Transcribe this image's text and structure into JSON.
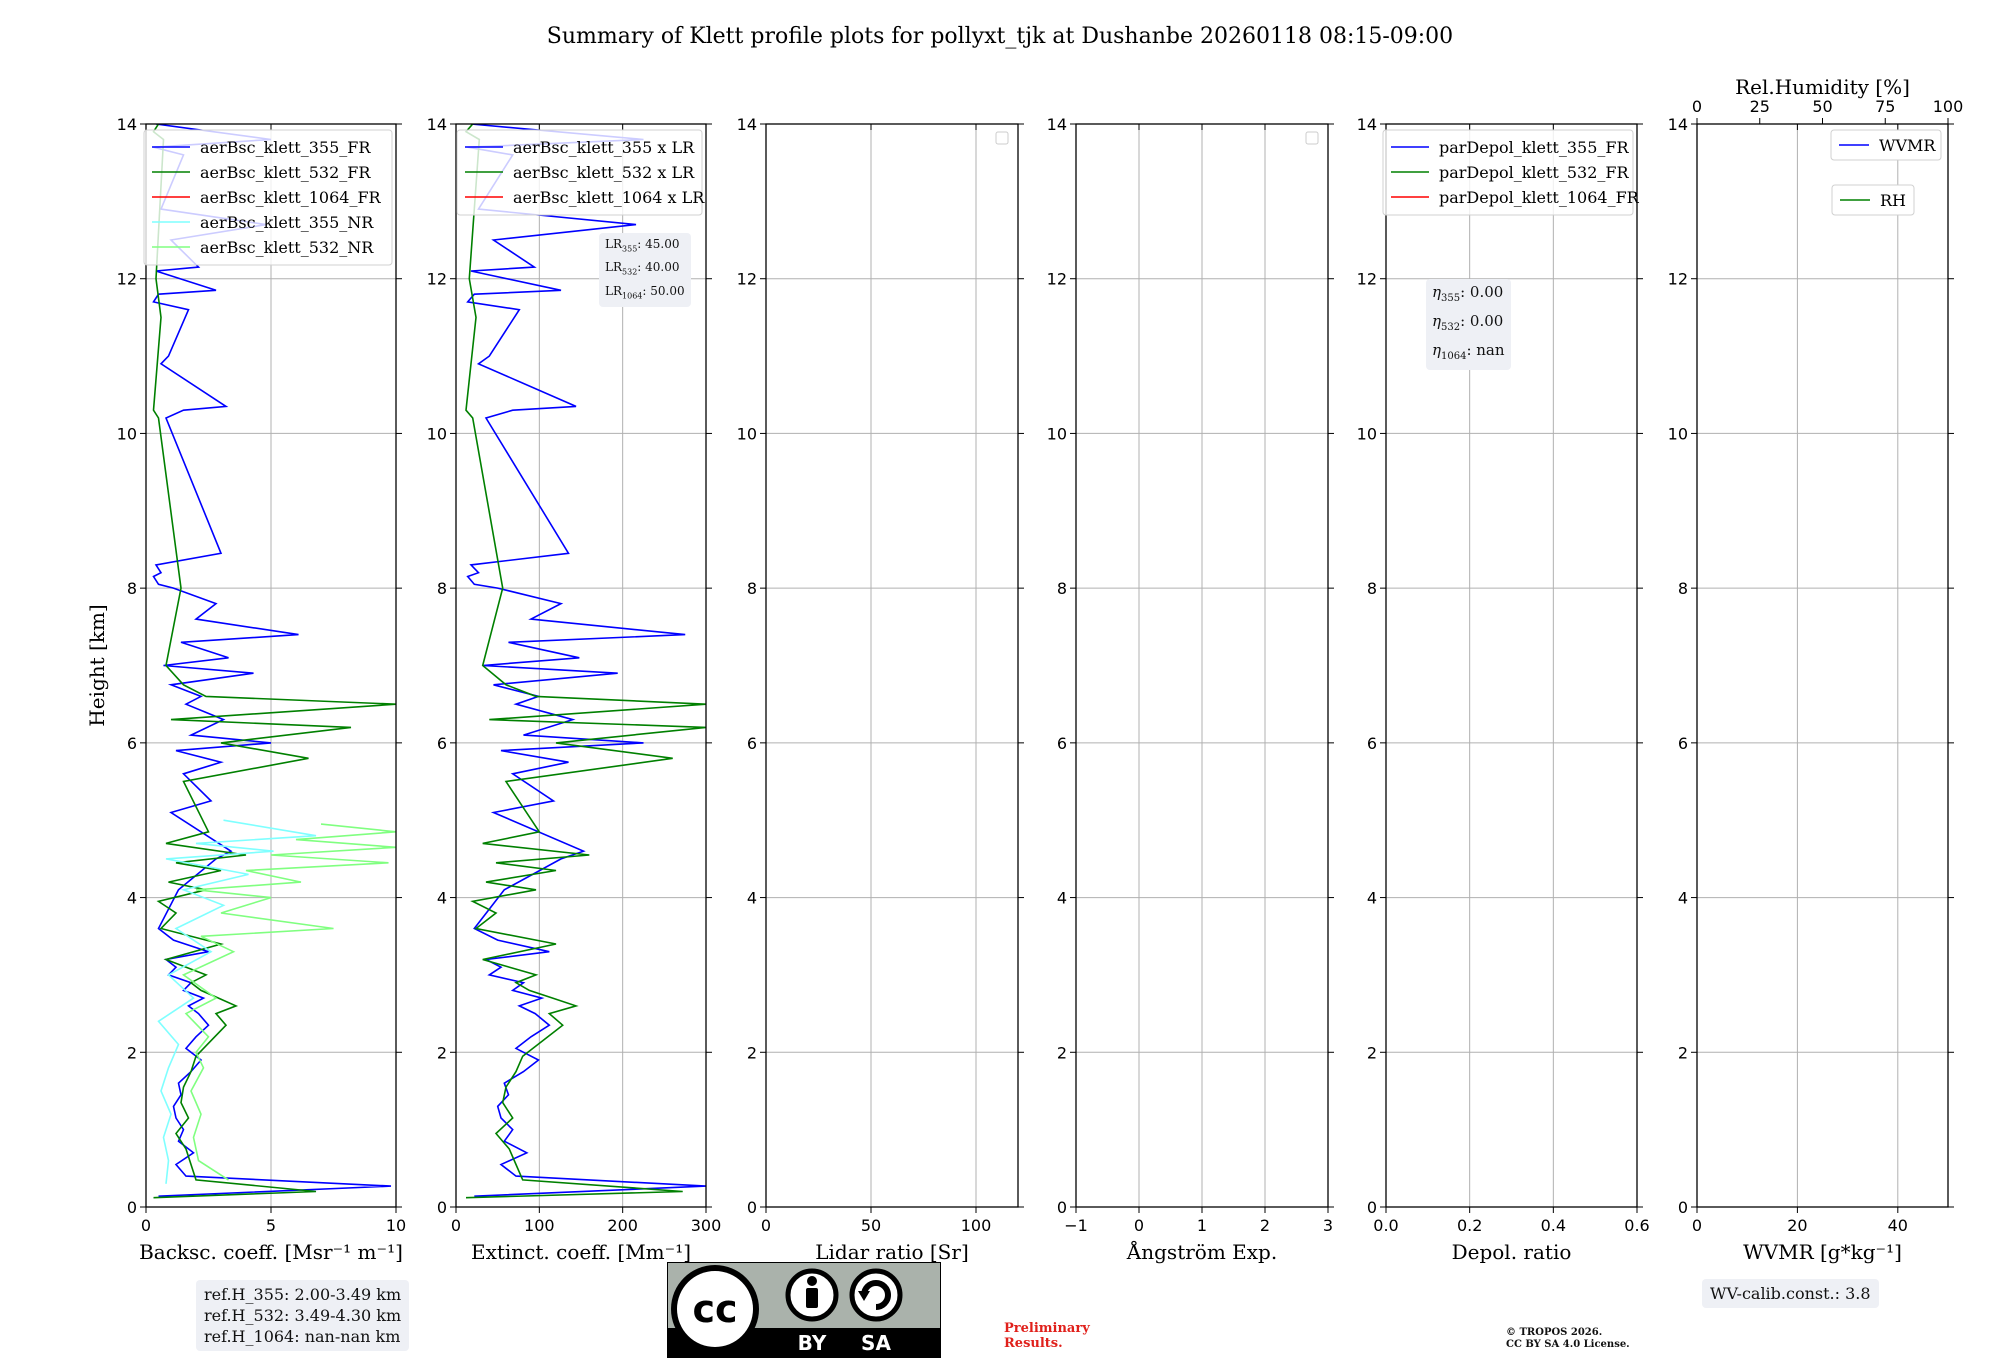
{
  "title": "Summary of Klett profile plots for pollyxt_tjk at Dushanbe 20260118 08:15-09:00",
  "colors": {
    "blue": "#0000ff",
    "green": "#008000",
    "red": "#ff0000",
    "cyan": "#7fffff",
    "lightgreen": "#80ff80",
    "grid": "#b0b0b0"
  },
  "chart_data": [
    {
      "type": "line",
      "xlabel": "Backsc. coeff. [Msr⁻¹ m⁻¹]",
      "ylabel": "Height [km]",
      "xlim": [
        0,
        10
      ],
      "ylim": [
        0,
        14
      ],
      "xticks": [
        0,
        5,
        10
      ],
      "yticks": [
        0,
        2,
        4,
        6,
        8,
        10,
        12,
        14
      ],
      "legend": [
        "aerBsc_klett_355_FR",
        "aerBsc_klett_532_FR",
        "aerBsc_klett_1064_FR",
        "aerBsc_klett_355_NR",
        "aerBsc_klett_532_NR"
      ],
      "legend_position": "top-right",
      "series": [
        {
          "name": "aerBsc_klett_355_FR",
          "color": "#0000ff",
          "x": [
            0.5,
            9.8,
            1.6,
            1.2,
            1.9,
            1.3,
            1.5,
            1.2,
            1.1,
            1.4,
            1.3,
            1.8,
            2.2,
            1.6,
            2.0,
            2.5,
            2.1,
            1.7,
            2.3,
            1.5,
            1.8,
            0.9,
            1.2,
            0.8,
            2.5,
            1.1,
            0.5,
            1.3,
            2.8,
            3.4,
            1.0,
            2.6,
            1.5,
            3.0,
            1.2,
            5.0,
            1.8,
            3.1,
            1.6,
            2.2,
            1.0,
            4.3,
            0.7,
            3.3,
            1.4,
            6.1,
            2.0,
            2.8,
            1.1,
            0.5,
            0.3,
            0.6,
            0.4,
            3.0,
            0.8,
            1.5,
            3.2,
            0.6,
            0.9,
            1.7,
            0.3,
            0.5,
            2.8,
            0.4,
            2.1,
            1.0,
            4.8,
            0.6,
            1.5,
            0.3,
            5.0,
            0.4
          ],
          "y": [
            0.14,
            0.27,
            0.4,
            0.55,
            0.7,
            0.85,
            1.0,
            1.15,
            1.3,
            1.45,
            1.6,
            1.75,
            1.9,
            2.05,
            2.2,
            2.35,
            2.5,
            2.6,
            2.7,
            2.8,
            2.9,
            3.0,
            3.1,
            3.2,
            3.3,
            3.45,
            3.6,
            4.1,
            4.5,
            4.6,
            5.1,
            5.25,
            5.6,
            5.75,
            5.9,
            6.0,
            6.1,
            6.3,
            6.5,
            6.6,
            6.75,
            6.9,
            7.0,
            7.1,
            7.3,
            7.4,
            7.6,
            7.8,
            8.0,
            8.05,
            8.15,
            8.2,
            8.3,
            8.45,
            10.2,
            10.3,
            10.35,
            10.9,
            11.0,
            11.6,
            11.7,
            11.8,
            11.85,
            12.1,
            12.15,
            12.5,
            12.7,
            12.9,
            13.6,
            13.7,
            13.8,
            14.0
          ]
        },
        {
          "name": "aerBsc_klett_532_FR",
          "color": "#008000",
          "x": [
            0.3,
            6.8,
            2.0,
            1.8,
            1.6,
            1.2,
            1.7,
            1.4,
            1.5,
            1.8,
            2.0,
            2.6,
            3.2,
            2.8,
            3.6,
            2.9,
            2.2,
            1.8,
            2.4,
            0.8,
            3.0,
            0.6,
            1.2,
            0.5,
            2.4,
            0.9,
            3.0,
            1.2,
            4.0,
            0.8,
            2.5,
            1.5,
            6.5,
            3.0,
            8.2,
            1.0,
            10.0,
            2.4,
            1.5,
            0.8,
            1.4,
            0.5,
            0.3,
            0.6,
            0.4,
            0.7,
            0.3,
            0.5
          ],
          "y": [
            0.12,
            0.2,
            0.35,
            0.55,
            0.75,
            0.95,
            1.15,
            1.35,
            1.55,
            1.75,
            1.95,
            2.15,
            2.35,
            2.5,
            2.6,
            2.7,
            2.8,
            2.9,
            3.0,
            3.2,
            3.4,
            3.6,
            3.8,
            3.95,
            4.1,
            4.2,
            4.35,
            4.45,
            4.55,
            4.7,
            4.85,
            5.5,
            5.8,
            6.0,
            6.2,
            6.3,
            6.5,
            6.6,
            6.75,
            7.0,
            8.0,
            10.2,
            10.3,
            11.5,
            12.0,
            13.8,
            13.9,
            14.0
          ]
        },
        {
          "name": "aerBsc_klett_1064_FR",
          "color": "#ff0000",
          "x": [],
          "y": []
        },
        {
          "name": "aerBsc_klett_355_NR",
          "color": "#7fffff",
          "x": [
            0.8,
            0.9,
            0.7,
            1.0,
            0.6,
            0.9,
            1.3,
            0.5,
            1.9,
            0.9,
            2.6,
            1.2,
            3.1,
            1.5,
            4.1,
            0.8,
            5.1,
            2.0,
            6.8,
            3.1
          ],
          "y": [
            0.3,
            0.6,
            0.9,
            1.2,
            1.5,
            1.8,
            2.1,
            2.4,
            2.7,
            3.0,
            3.3,
            3.6,
            3.9,
            4.1,
            4.3,
            4.5,
            4.6,
            4.7,
            4.8,
            5.0
          ]
        },
        {
          "name": "aerBsc_klett_532_NR",
          "color": "#80ff80",
          "x": [
            3.3,
            2.1,
            1.9,
            2.2,
            1.8,
            2.3,
            2.0,
            2.5,
            1.6,
            2.8,
            1.5,
            3.5,
            2.2,
            7.5,
            3.0,
            5.0,
            2.0,
            6.2,
            4.0,
            9.7,
            5.0,
            10.0,
            6.0,
            10.0,
            7.0
          ],
          "y": [
            0.35,
            0.6,
            0.9,
            1.2,
            1.5,
            1.8,
            2.0,
            2.2,
            2.5,
            2.7,
            3.0,
            3.3,
            3.5,
            3.6,
            3.8,
            4.0,
            4.1,
            4.2,
            4.35,
            4.45,
            4.55,
            4.65,
            4.75,
            4.85,
            4.95
          ]
        }
      ]
    },
    {
      "type": "line",
      "xlabel": "Extinct. coeff. [Mm⁻¹]",
      "xlim": [
        0,
        300
      ],
      "ylim": [
        0,
        14
      ],
      "xticks": [
        0,
        100,
        200,
        300
      ],
      "yticks": [
        0,
        2,
        4,
        6,
        8,
        10,
        12,
        14
      ],
      "legend": [
        "aerBsc_klett_355 x LR",
        "aerBsc_klett_532 x LR",
        "aerBsc_klett_1064 x LR"
      ],
      "legend_position": "top-right",
      "series": [
        {
          "name": "aerBsc_klett_355 x LR",
          "color": "#0000ff",
          "x": [
            22,
            300,
            72,
            54,
            85,
            58,
            68,
            54,
            50,
            63,
            58,
            81,
            99,
            72,
            90,
            112,
            95,
            76,
            103,
            68,
            81,
            40,
            54,
            36,
            112,
            50,
            22,
            58,
            126,
            153,
            45,
            117,
            68,
            135,
            54,
            225,
            81,
            140,
            72,
            99,
            45,
            194,
            32,
            148,
            63,
            275,
            90,
            126,
            50,
            22,
            14,
            27,
            18,
            135,
            36,
            68,
            144,
            27,
            40,
            76,
            14,
            22,
            126,
            18,
            94,
            45,
            216,
            27,
            68,
            14,
            225,
            18
          ],
          "y": [
            0.14,
            0.27,
            0.4,
            0.55,
            0.7,
            0.85,
            1.0,
            1.15,
            1.3,
            1.45,
            1.6,
            1.75,
            1.9,
            2.05,
            2.2,
            2.35,
            2.5,
            2.6,
            2.7,
            2.8,
            2.9,
            3.0,
            3.1,
            3.2,
            3.3,
            3.45,
            3.6,
            4.1,
            4.5,
            4.6,
            5.1,
            5.25,
            5.6,
            5.75,
            5.9,
            6.0,
            6.1,
            6.3,
            6.5,
            6.6,
            6.75,
            6.9,
            7.0,
            7.1,
            7.3,
            7.4,
            7.6,
            7.8,
            8.0,
            8.05,
            8.15,
            8.2,
            8.3,
            8.45,
            10.2,
            10.3,
            10.35,
            10.9,
            11.0,
            11.6,
            11.7,
            11.8,
            11.85,
            12.1,
            12.15,
            12.5,
            12.7,
            12.9,
            13.6,
            13.7,
            13.8,
            14.0
          ]
        },
        {
          "name": "aerBsc_klett_532 x LR",
          "color": "#008000",
          "x": [
            12,
            272,
            80,
            72,
            64,
            48,
            68,
            56,
            60,
            72,
            80,
            104,
            128,
            112,
            144,
            116,
            88,
            72,
            96,
            32,
            120,
            24,
            48,
            20,
            96,
            36,
            120,
            48,
            160,
            32,
            100,
            60,
            260,
            120,
            300,
            40,
            300,
            96,
            60,
            32,
            56,
            20,
            12,
            24,
            16,
            28,
            12,
            20
          ],
          "y": [
            0.12,
            0.2,
            0.35,
            0.55,
            0.75,
            0.95,
            1.15,
            1.35,
            1.55,
            1.75,
            1.95,
            2.15,
            2.35,
            2.5,
            2.6,
            2.7,
            2.8,
            2.9,
            3.0,
            3.2,
            3.4,
            3.6,
            3.8,
            3.95,
            4.1,
            4.2,
            4.35,
            4.45,
            4.55,
            4.7,
            4.85,
            5.5,
            5.8,
            6.0,
            6.2,
            6.3,
            6.5,
            6.6,
            6.75,
            7.0,
            8.0,
            10.2,
            10.3,
            11.5,
            12.0,
            13.8,
            13.9,
            14.0
          ]
        },
        {
          "name": "aerBsc_klett_1064 x LR",
          "color": "#ff0000",
          "x": [],
          "y": []
        }
      ]
    },
    {
      "type": "line",
      "xlabel": "Lidar ratio [Sr]",
      "xlim": [
        0,
        120
      ],
      "ylim": [
        0,
        14
      ],
      "xticks": [
        0,
        50,
        100
      ],
      "yticks": [
        0,
        2,
        4,
        6,
        8,
        10,
        12,
        14
      ],
      "legend": [],
      "series": []
    },
    {
      "type": "line",
      "xlabel": "Ångström Exp.",
      "xlim": [
        -1,
        3
      ],
      "ylim": [
        0,
        14
      ],
      "xticks": [
        -1,
        0,
        1,
        2,
        3
      ],
      "yticks": [
        0,
        2,
        4,
        6,
        8,
        10,
        12,
        14
      ],
      "legend": [],
      "series": []
    },
    {
      "type": "line",
      "xlabel": "Depol. ratio",
      "xlim": [
        0,
        0.6
      ],
      "ylim": [
        0,
        14
      ],
      "xticks": [
        0.0,
        0.2,
        0.4,
        0.6
      ],
      "yticks": [
        0,
        2,
        4,
        6,
        8,
        10,
        12,
        14
      ],
      "legend": [
        "parDepol_klett_355_FR",
        "parDepol_klett_532_FR",
        "parDepol_klett_1064_FR"
      ],
      "legend_position": "top-right",
      "series": [
        {
          "name": "parDepol_klett_355_FR",
          "color": "#0000ff",
          "x": [],
          "y": []
        },
        {
          "name": "parDepol_klett_532_FR",
          "color": "#008000",
          "x": [],
          "y": []
        },
        {
          "name": "parDepol_klett_1064_FR",
          "color": "#ff0000",
          "x": [],
          "y": []
        }
      ]
    },
    {
      "type": "line",
      "xlabel": "WVMR [g*kg⁻¹]",
      "top_xlabel": "Rel.Humidity [%]",
      "xlim": [
        0,
        50
      ],
      "top_xlim": [
        0,
        100
      ],
      "ylim": [
        0,
        14
      ],
      "xticks": [
        0,
        20,
        40
      ],
      "top_xticks": [
        0,
        25,
        50,
        75,
        100
      ],
      "yticks": [
        0,
        2,
        4,
        6,
        8,
        10,
        12,
        14
      ],
      "legend": [
        "WVMR",
        "RH"
      ],
      "series": [
        {
          "name": "WVMR",
          "color": "#0000ff",
          "x": [],
          "y": []
        },
        {
          "name": "RH",
          "color": "#008000",
          "x": [],
          "y": []
        }
      ]
    }
  ],
  "annotations": {
    "ref_h": [
      "ref.H_355: 2.00-3.49 km",
      "ref.H_532: 3.49-4.30 km",
      "ref.H_1064: nan-nan km"
    ],
    "lr": {
      "l355": "LR355: 45.00",
      "l532": "LR532: 40.00",
      "l1064": "LR1064: 50.00"
    },
    "eta": {
      "e355": "η355: 0.00",
      "e532": "η532: 0.00",
      "e1064": "η1064: nan"
    },
    "wv_calib": "WV-calib.const.: 3.8",
    "preliminary": [
      "Preliminary",
      "Results."
    ],
    "copyright": [
      "© TROPOS 2026.",
      "CC BY SA 4.0 License."
    ],
    "cc": {
      "by": "BY",
      "sa": "SA",
      "cc": "cc"
    }
  }
}
